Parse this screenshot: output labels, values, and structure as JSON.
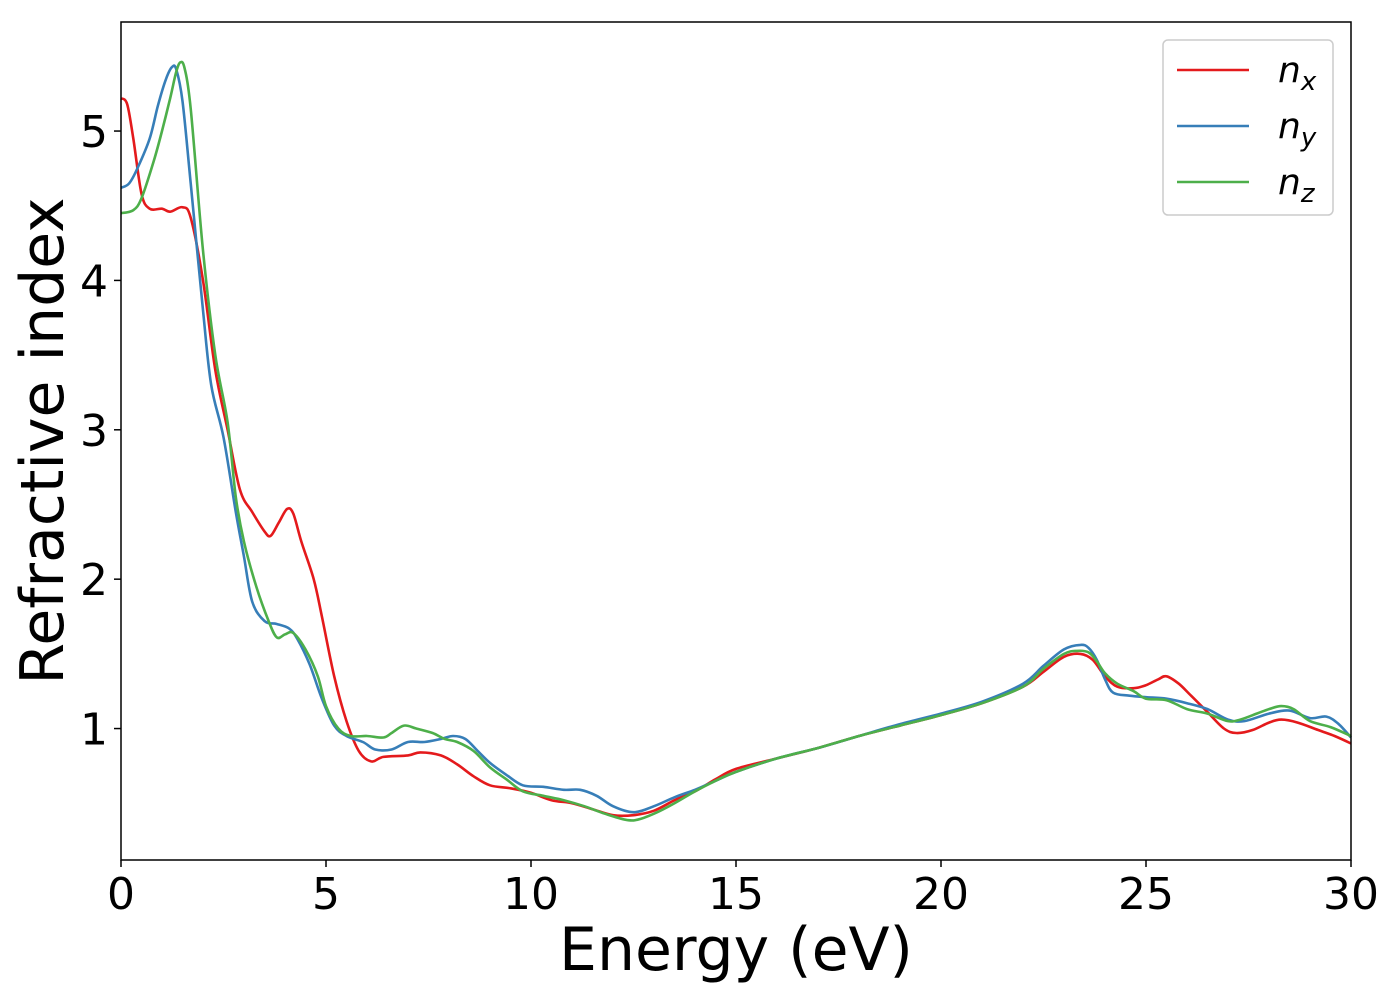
{
  "chart_data": {
    "type": "line",
    "title": "",
    "xlabel": "Energy (eV)",
    "ylabel": "Refractive index",
    "xlim": [
      0,
      30
    ],
    "ylim": [
      0.12,
      5.73
    ],
    "xticks": [
      0,
      5,
      10,
      15,
      20,
      25,
      30
    ],
    "yticks": [
      1,
      2,
      3,
      4,
      5
    ],
    "grid": false,
    "legend_position": "top-right",
    "series": [
      {
        "name": "n_x",
        "legend_base": "n",
        "legend_sub": "x",
        "color": "#e41a1c",
        "points": [
          [
            0,
            5.22
          ],
          [
            0.15,
            5.18
          ],
          [
            0.3,
            4.95
          ],
          [
            0.5,
            4.58
          ],
          [
            0.7,
            4.48
          ],
          [
            1.0,
            4.48
          ],
          [
            1.2,
            4.46
          ],
          [
            1.5,
            4.49
          ],
          [
            1.7,
            4.42
          ],
          [
            2.0,
            4.0
          ],
          [
            2.3,
            3.4
          ],
          [
            2.6,
            3.0
          ],
          [
            2.9,
            2.6
          ],
          [
            3.2,
            2.45
          ],
          [
            3.5,
            2.32
          ],
          [
            3.65,
            2.29
          ],
          [
            3.85,
            2.38
          ],
          [
            4.05,
            2.47
          ],
          [
            4.2,
            2.44
          ],
          [
            4.4,
            2.25
          ],
          [
            4.7,
            2.0
          ],
          [
            4.9,
            1.75
          ],
          [
            5.2,
            1.35
          ],
          [
            5.5,
            1.05
          ],
          [
            5.8,
            0.85
          ],
          [
            6.1,
            0.78
          ],
          [
            6.4,
            0.81
          ],
          [
            7.0,
            0.82
          ],
          [
            7.3,
            0.84
          ],
          [
            7.8,
            0.82
          ],
          [
            8.2,
            0.76
          ],
          [
            8.6,
            0.68
          ],
          [
            9.0,
            0.62
          ],
          [
            9.5,
            0.6
          ],
          [
            10.0,
            0.57
          ],
          [
            10.5,
            0.52
          ],
          [
            11.0,
            0.5
          ],
          [
            11.5,
            0.46
          ],
          [
            12.0,
            0.42
          ],
          [
            12.5,
            0.42
          ],
          [
            13.0,
            0.45
          ],
          [
            13.5,
            0.52
          ],
          [
            14.0,
            0.58
          ],
          [
            14.5,
            0.66
          ],
          [
            15.0,
            0.73
          ],
          [
            16.0,
            0.8
          ],
          [
            17.0,
            0.87
          ],
          [
            18.0,
            0.95
          ],
          [
            19.0,
            1.02
          ],
          [
            20.0,
            1.09
          ],
          [
            21.0,
            1.17
          ],
          [
            22.0,
            1.28
          ],
          [
            22.5,
            1.38
          ],
          [
            23.0,
            1.48
          ],
          [
            23.4,
            1.5
          ],
          [
            23.7,
            1.46
          ],
          [
            24.0,
            1.35
          ],
          [
            24.3,
            1.28
          ],
          [
            24.7,
            1.27
          ],
          [
            25.0,
            1.29
          ],
          [
            25.3,
            1.33
          ],
          [
            25.5,
            1.35
          ],
          [
            25.8,
            1.3
          ],
          [
            26.1,
            1.22
          ],
          [
            26.5,
            1.11
          ],
          [
            26.9,
            1.0
          ],
          [
            27.2,
            0.97
          ],
          [
            27.6,
            0.99
          ],
          [
            28.0,
            1.04
          ],
          [
            28.3,
            1.06
          ],
          [
            28.7,
            1.04
          ],
          [
            29.2,
            0.99
          ],
          [
            29.6,
            0.95
          ],
          [
            30.0,
            0.9
          ]
        ]
      },
      {
        "name": "n_y",
        "legend_base": "n",
        "legend_sub": "y",
        "color": "#377eb8",
        "points": [
          [
            0,
            4.62
          ],
          [
            0.2,
            4.65
          ],
          [
            0.4,
            4.75
          ],
          [
            0.7,
            4.95
          ],
          [
            0.9,
            5.17
          ],
          [
            1.1,
            5.35
          ],
          [
            1.25,
            5.43
          ],
          [
            1.35,
            5.41
          ],
          [
            1.5,
            5.2
          ],
          [
            1.7,
            4.65
          ],
          [
            2.0,
            3.8
          ],
          [
            2.2,
            3.3
          ],
          [
            2.5,
            2.95
          ],
          [
            2.8,
            2.45
          ],
          [
            3.0,
            2.15
          ],
          [
            3.2,
            1.85
          ],
          [
            3.5,
            1.72
          ],
          [
            3.8,
            1.7
          ],
          [
            4.1,
            1.67
          ],
          [
            4.3,
            1.6
          ],
          [
            4.6,
            1.43
          ],
          [
            4.9,
            1.2
          ],
          [
            5.2,
            1.02
          ],
          [
            5.5,
            0.95
          ],
          [
            5.9,
            0.91
          ],
          [
            6.2,
            0.86
          ],
          [
            6.6,
            0.86
          ],
          [
            7.0,
            0.91
          ],
          [
            7.4,
            0.91
          ],
          [
            7.8,
            0.93
          ],
          [
            8.1,
            0.95
          ],
          [
            8.4,
            0.93
          ],
          [
            8.7,
            0.85
          ],
          [
            9.0,
            0.77
          ],
          [
            9.4,
            0.69
          ],
          [
            9.8,
            0.62
          ],
          [
            10.3,
            0.61
          ],
          [
            10.8,
            0.59
          ],
          [
            11.2,
            0.59
          ],
          [
            11.6,
            0.55
          ],
          [
            12.0,
            0.48
          ],
          [
            12.5,
            0.44
          ],
          [
            13.0,
            0.48
          ],
          [
            13.5,
            0.54
          ],
          [
            14.0,
            0.59
          ],
          [
            14.5,
            0.65
          ],
          [
            15.0,
            0.71
          ],
          [
            16.0,
            0.8
          ],
          [
            17.0,
            0.87
          ],
          [
            18.0,
            0.95
          ],
          [
            19.0,
            1.03
          ],
          [
            20.0,
            1.1
          ],
          [
            21.0,
            1.18
          ],
          [
            22.0,
            1.3
          ],
          [
            22.5,
            1.42
          ],
          [
            23.0,
            1.53
          ],
          [
            23.4,
            1.56
          ],
          [
            23.6,
            1.54
          ],
          [
            23.8,
            1.46
          ],
          [
            24.0,
            1.33
          ],
          [
            24.2,
            1.24
          ],
          [
            24.6,
            1.22
          ],
          [
            25.0,
            1.21
          ],
          [
            25.5,
            1.2
          ],
          [
            26.0,
            1.17
          ],
          [
            26.5,
            1.13
          ],
          [
            27.0,
            1.06
          ],
          [
            27.4,
            1.05
          ],
          [
            28.0,
            1.1
          ],
          [
            28.5,
            1.12
          ],
          [
            29.0,
            1.07
          ],
          [
            29.4,
            1.08
          ],
          [
            29.7,
            1.03
          ],
          [
            30.0,
            0.94
          ]
        ]
      },
      {
        "name": "n_z",
        "legend_base": "n",
        "legend_sub": "z",
        "color": "#4daf4a",
        "points": [
          [
            0,
            4.45
          ],
          [
            0.3,
            4.47
          ],
          [
            0.5,
            4.55
          ],
          [
            0.8,
            4.8
          ],
          [
            1.0,
            5.0
          ],
          [
            1.2,
            5.22
          ],
          [
            1.35,
            5.4
          ],
          [
            1.45,
            5.46
          ],
          [
            1.55,
            5.42
          ],
          [
            1.7,
            5.15
          ],
          [
            2.0,
            4.2
          ],
          [
            2.3,
            3.5
          ],
          [
            2.6,
            3.05
          ],
          [
            2.8,
            2.55
          ],
          [
            3.0,
            2.25
          ],
          [
            3.3,
            1.95
          ],
          [
            3.6,
            1.72
          ],
          [
            3.8,
            1.61
          ],
          [
            4.0,
            1.63
          ],
          [
            4.2,
            1.64
          ],
          [
            4.5,
            1.53
          ],
          [
            4.8,
            1.35
          ],
          [
            5.0,
            1.15
          ],
          [
            5.3,
            1.0
          ],
          [
            5.6,
            0.95
          ],
          [
            6.0,
            0.95
          ],
          [
            6.4,
            0.94
          ],
          [
            6.6,
            0.97
          ],
          [
            6.9,
            1.02
          ],
          [
            7.2,
            1.0
          ],
          [
            7.6,
            0.97
          ],
          [
            7.9,
            0.93
          ],
          [
            8.2,
            0.91
          ],
          [
            8.6,
            0.85
          ],
          [
            9.0,
            0.74
          ],
          [
            9.4,
            0.66
          ],
          [
            9.8,
            0.58
          ],
          [
            10.3,
            0.55
          ],
          [
            10.8,
            0.52
          ],
          [
            11.3,
            0.48
          ],
          [
            11.8,
            0.43
          ],
          [
            12.3,
            0.39
          ],
          [
            12.6,
            0.39
          ],
          [
            13.0,
            0.43
          ],
          [
            13.5,
            0.5
          ],
          [
            14.0,
            0.58
          ],
          [
            14.5,
            0.65
          ],
          [
            15.0,
            0.71
          ],
          [
            16.0,
            0.8
          ],
          [
            17.0,
            0.87
          ],
          [
            18.0,
            0.95
          ],
          [
            19.0,
            1.02
          ],
          [
            20.0,
            1.09
          ],
          [
            21.0,
            1.17
          ],
          [
            22.0,
            1.28
          ],
          [
            22.5,
            1.4
          ],
          [
            23.0,
            1.5
          ],
          [
            23.3,
            1.52
          ],
          [
            23.6,
            1.51
          ],
          [
            23.8,
            1.45
          ],
          [
            24.0,
            1.37
          ],
          [
            24.3,
            1.3
          ],
          [
            24.7,
            1.25
          ],
          [
            25.0,
            1.2
          ],
          [
            25.5,
            1.19
          ],
          [
            26.0,
            1.13
          ],
          [
            26.5,
            1.1
          ],
          [
            27.0,
            1.05
          ],
          [
            27.3,
            1.06
          ],
          [
            27.7,
            1.1
          ],
          [
            28.0,
            1.13
          ],
          [
            28.3,
            1.15
          ],
          [
            28.6,
            1.13
          ],
          [
            29.0,
            1.05
          ],
          [
            29.5,
            1.01
          ],
          [
            30.0,
            0.95
          ]
        ]
      }
    ]
  }
}
